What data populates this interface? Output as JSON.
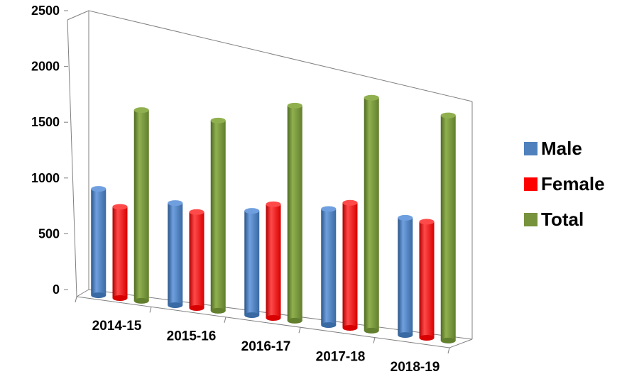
{
  "chart_data": {
    "type": "bar",
    "style": "3d-cylinder",
    "categories": [
      "2014-15",
      "2015-16",
      "2016-17",
      "2017-18",
      "2018-19"
    ],
    "series": [
      {
        "name": "Male",
        "color": "#4F81BD",
        "values": [
          960,
          950,
          1000,
          1150,
          1200
        ]
      },
      {
        "name": "Female",
        "color": "#FF0000",
        "values": [
          830,
          900,
          1100,
          1250,
          1200
        ]
      },
      {
        "name": "Total",
        "color": "#77933C",
        "values": [
          1750,
          1800,
          2100,
          2350,
          2350
        ]
      }
    ],
    "yticks": [
      0,
      500,
      1000,
      1500,
      2000,
      2500
    ],
    "ylim": [
      0,
      2500
    ],
    "title": "",
    "xlabel": "",
    "ylabel": "",
    "legend_position": "right",
    "grid": false
  }
}
